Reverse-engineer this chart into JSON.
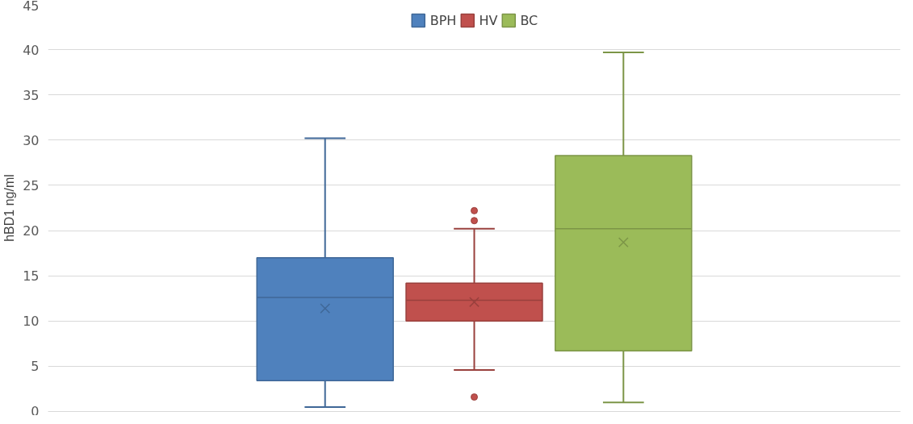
{
  "chart_data": {
    "type": "box",
    "ylabel": "hBD1 ng/ml",
    "categories": [
      null
    ],
    "ylim": [
      0,
      45
    ],
    "yticks": [
      0,
      5,
      10,
      15,
      20,
      25,
      30,
      35,
      40,
      45
    ],
    "grid": "y",
    "legend": "top",
    "series": [
      {
        "name": "BPH",
        "color": "#4f81bd",
        "boxes": [
          {
            "low": 0.5,
            "q1": 3.4,
            "median": 12.6,
            "q3": 17.0,
            "high": 30.2,
            "mean": 11.4
          }
        ]
      },
      {
        "name": "HV",
        "color": "#c0504d",
        "boxes": [
          {
            "low": 4.6,
            "q1": 10.0,
            "median": 12.3,
            "q3": 14.2,
            "high": 20.2,
            "mean": 12.1,
            "outliers": [
              22.2,
              21.1,
              1.6
            ]
          }
        ]
      },
      {
        "name": "BC",
        "color": "#9bbb59",
        "boxes": [
          {
            "low": 1.0,
            "q1": 6.7,
            "median": 20.2,
            "q3": 28.3,
            "high": 39.7,
            "mean": 18.7
          }
        ]
      }
    ]
  }
}
